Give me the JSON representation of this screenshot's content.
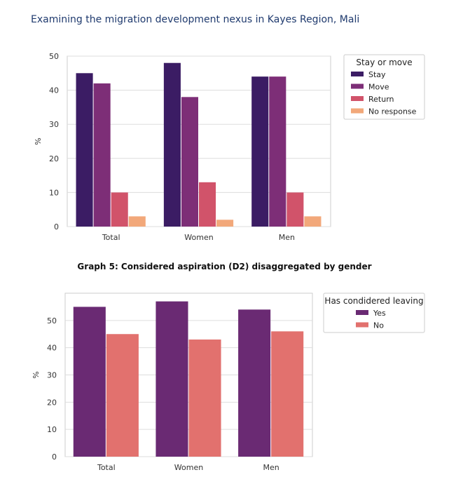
{
  "header": {
    "title": "Examining the migration development nexus in Kayes Region, Mali"
  },
  "caption": "Graph 5: Considered aspiration (D2) disaggregated by gender",
  "chart_data": [
    {
      "type": "bar",
      "categories": [
        "Total",
        "Women",
        "Men"
      ],
      "series": [
        {
          "name": "Stay",
          "color": "#3b1c64",
          "values": [
            45,
            48,
            44
          ]
        },
        {
          "name": "Move",
          "color": "#7d2e77",
          "values": [
            42,
            38,
            44
          ]
        },
        {
          "name": "Return",
          "color": "#d1536a",
          "values": [
            10,
            13,
            10
          ]
        },
        {
          "name": "No response",
          "color": "#f2a87a",
          "values": [
            3,
            2,
            3
          ]
        }
      ],
      "xlabel": "",
      "ylabel": "%",
      "ylim": [
        0,
        50
      ],
      "yticks": [
        0,
        10,
        20,
        30,
        40,
        50
      ],
      "grid": true,
      "legend": {
        "title": "Stay or move",
        "position": "right"
      }
    },
    {
      "type": "bar",
      "categories": [
        "Total",
        "Women",
        "Men"
      ],
      "series": [
        {
          "name": "Yes",
          "color": "#6a2a73",
          "values": [
            55,
            57,
            54
          ]
        },
        {
          "name": "No",
          "color": "#e2716e",
          "values": [
            45,
            43,
            46
          ]
        }
      ],
      "xlabel": "",
      "ylabel": "%",
      "ylim": [
        0,
        60
      ],
      "yticks": [
        0,
        10,
        20,
        30,
        40,
        50
      ],
      "grid": true,
      "legend": {
        "title": "Has condidered leaving",
        "position": "right"
      }
    }
  ]
}
